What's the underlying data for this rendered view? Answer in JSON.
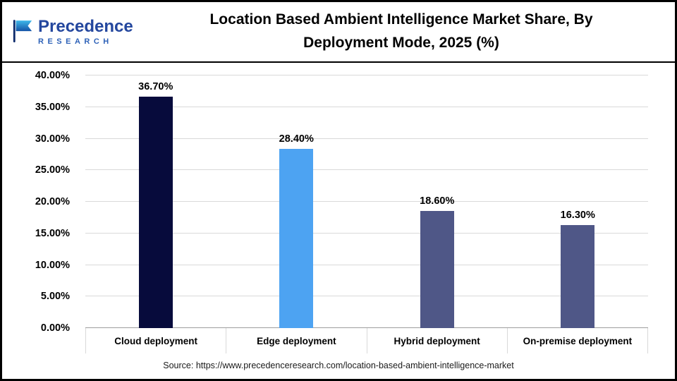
{
  "header": {
    "logo": {
      "name": "Precedence",
      "subname": "RESEARCH"
    },
    "title_lines": [
      "Location Based Ambient Intelligence Market Share, By",
      "Deployment Mode, 2025 (%)"
    ]
  },
  "chart_data": {
    "type": "bar",
    "title": "Location Based Ambient Intelligence Market Share, By Deployment Mode, 2025 (%)",
    "categories": [
      "Cloud deployment",
      "Edge deployment",
      "Hybrid deployment",
      "On-premise deployment"
    ],
    "values": [
      36.7,
      28.4,
      18.6,
      16.3
    ],
    "value_labels": [
      "36.70%",
      "28.40%",
      "18.60%",
      "16.30%"
    ],
    "colors": [
      "#070b3c",
      "#4da3f2",
      "#4f5787",
      "#4f5787"
    ],
    "ylim": [
      0,
      40
    ],
    "yticks": [
      {
        "value": 0,
        "label": "0.00%"
      },
      {
        "value": 5,
        "label": "5.00%"
      },
      {
        "value": 10,
        "label": "10.00%"
      },
      {
        "value": 15,
        "label": "15.00%"
      },
      {
        "value": 20,
        "label": "20.00%"
      },
      {
        "value": 25,
        "label": "25.00%"
      },
      {
        "value": 30,
        "label": "30.00%"
      },
      {
        "value": 35,
        "label": "35.00%"
      },
      {
        "value": 40,
        "label": "40.00%"
      }
    ],
    "grid": true,
    "legend": "none"
  },
  "footer": {
    "source_text": "Source: https://www.precedenceresearch.com/location-based-ambient-intelligence-market"
  }
}
